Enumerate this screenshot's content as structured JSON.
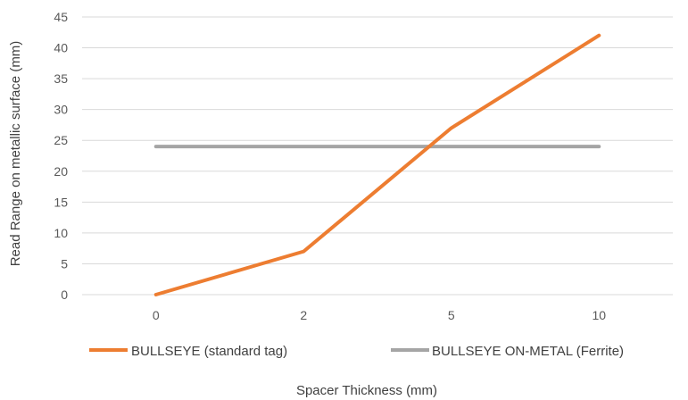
{
  "chart_data": {
    "type": "line",
    "categories": [
      "0",
      "2",
      "5",
      "10"
    ],
    "series": [
      {
        "name": "BULLSEYE (standard tag)",
        "values": [
          0,
          7,
          27,
          42
        ],
        "color": "#ED7D31"
      },
      {
        "name": "BULLSEYE ON-METAL (Ferrite)",
        "values": [
          24,
          24,
          24,
          24
        ],
        "color": "#A5A5A5"
      }
    ],
    "title": "",
    "xlabel": "Spacer Thickness (mm)",
    "ylabel": "Read Range on metallic surface (mm)",
    "ylim": [
      0,
      45
    ],
    "yticks": [
      "0",
      "5",
      "10",
      "15",
      "20",
      "25",
      "30",
      "35",
      "40",
      "45"
    ],
    "grid": true,
    "legend_position": "bottom",
    "gridline_color": "#D9D9D9"
  }
}
